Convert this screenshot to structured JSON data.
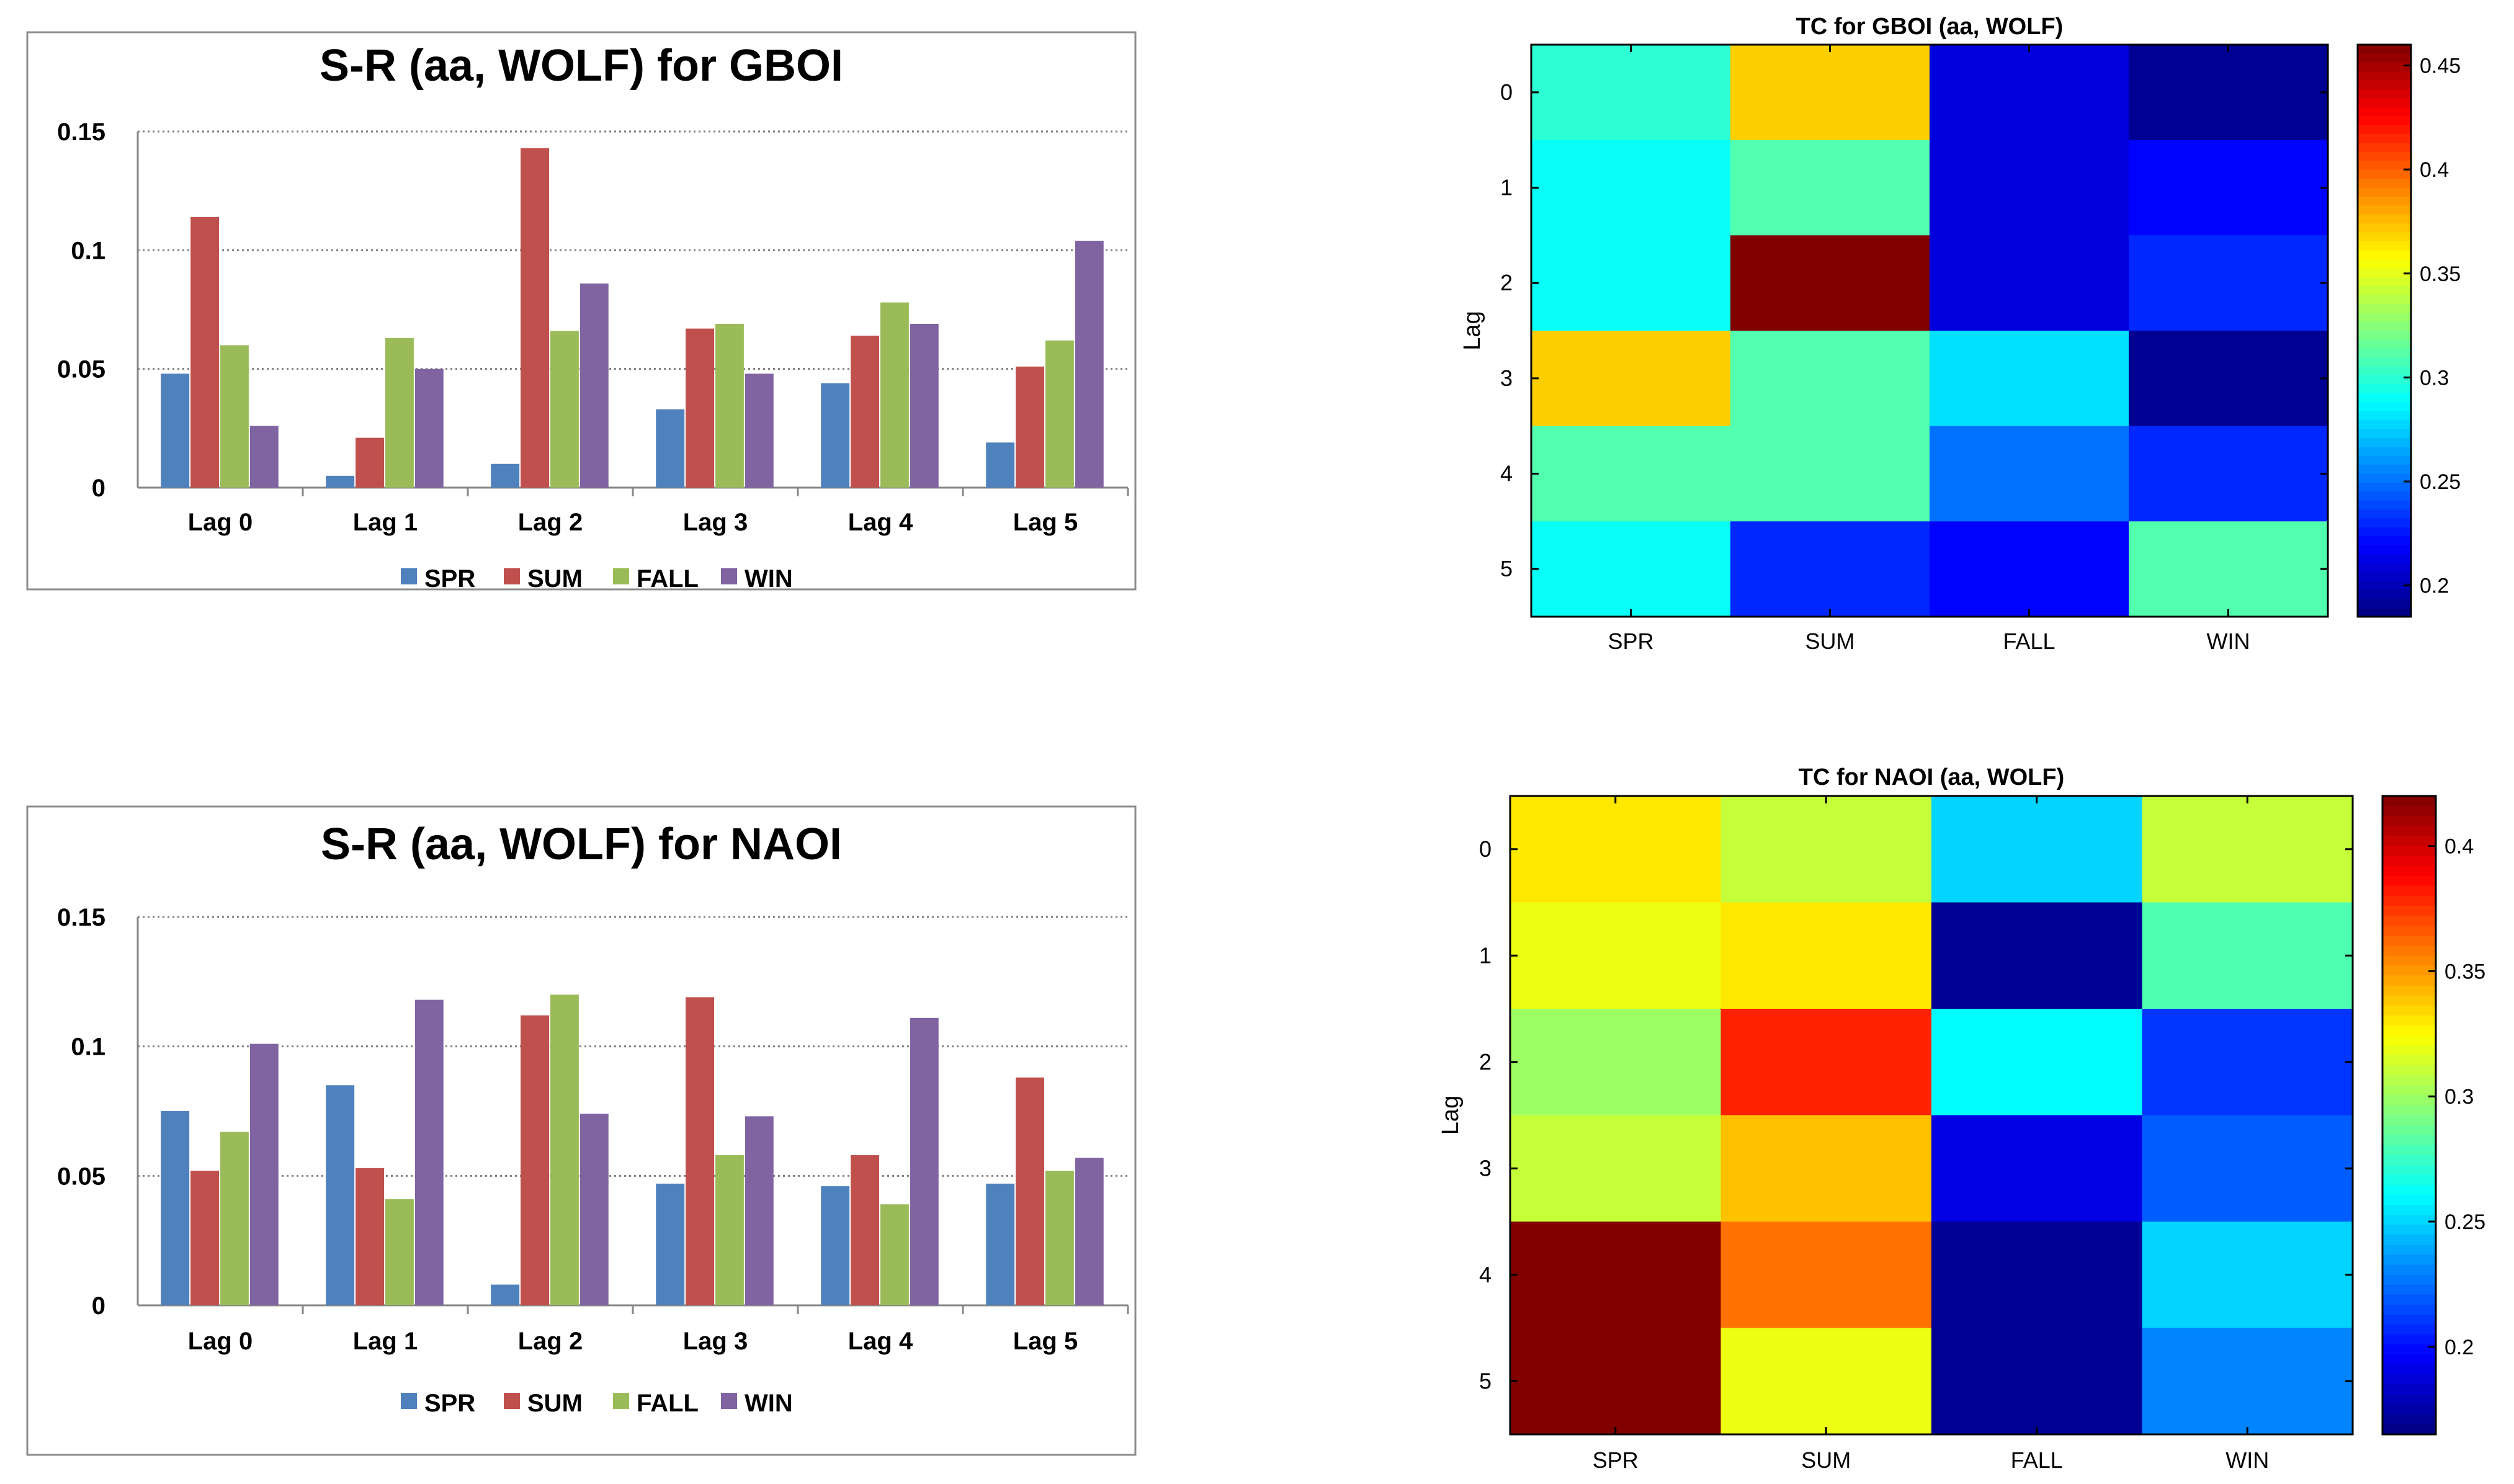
{
  "colors": {
    "SPR": "#4f81bd",
    "SUM": "#c0504d",
    "FALL": "#9bbb59",
    "WIN": "#8064a2"
  },
  "chart_data": [
    {
      "type": "bar",
      "title": "S-R (aa, WOLF) for GBOI",
      "categories": [
        "Lag 0",
        "Lag 1",
        "Lag 2",
        "Lag 3",
        "Lag 4",
        "Lag 5"
      ],
      "ylim": [
        0,
        0.15
      ],
      "yticks": [
        0,
        0.05,
        0.1,
        0.15
      ],
      "ytick_labels": [
        "0",
        "0.05",
        "0.1",
        "0.15"
      ],
      "grid": true,
      "legend": "bottom",
      "series": [
        {
          "name": "SPR",
          "values": [
            0.048,
            0.005,
            0.01,
            0.033,
            0.044,
            0.019
          ]
        },
        {
          "name": "SUM",
          "values": [
            0.114,
            0.021,
            0.143,
            0.067,
            0.064,
            0.051
          ]
        },
        {
          "name": "FALL",
          "values": [
            0.06,
            0.063,
            0.066,
            0.069,
            0.078,
            0.062
          ]
        },
        {
          "name": "WIN",
          "values": [
            0.026,
            0.05,
            0.086,
            0.048,
            0.069,
            0.104
          ]
        }
      ]
    },
    {
      "type": "heatmap",
      "title": "TC for GBOI (aa, WOLF)",
      "xlabel": "",
      "ylabel": "Lag",
      "x_categories": [
        "SPR",
        "SUM",
        "FALL",
        "WIN"
      ],
      "y_categories": [
        "0",
        "1",
        "2",
        "3",
        "4",
        "5"
      ],
      "values": [
        [
          0.3,
          0.37,
          0.21,
          0.19
        ],
        [
          0.29,
          0.31,
          0.21,
          0.22
        ],
        [
          0.29,
          0.46,
          0.21,
          0.23
        ],
        [
          0.37,
          0.31,
          0.28,
          0.19
        ],
        [
          0.31,
          0.31,
          0.25,
          0.23
        ],
        [
          0.29,
          0.23,
          0.22,
          0.31
        ]
      ],
      "colorbar": {
        "range": [
          0.185,
          0.46
        ],
        "ticks": [
          0.2,
          0.25,
          0.3,
          0.35,
          0.4,
          0.45
        ],
        "tick_labels": [
          "0.2",
          "0.25",
          "0.3",
          "0.35",
          "0.4",
          "0.45"
        ]
      }
    },
    {
      "type": "bar",
      "title": "S-R (aa, WOLF) for NAOI",
      "categories": [
        "Lag 0",
        "Lag 1",
        "Lag 2",
        "Lag 3",
        "Lag 4",
        "Lag 5"
      ],
      "ylim": [
        0,
        0.15
      ],
      "yticks": [
        0,
        0.05,
        0.1,
        0.15
      ],
      "ytick_labels": [
        "0",
        "0.05",
        "0.1",
        "0.15"
      ],
      "grid": true,
      "legend": "bottom",
      "series": [
        {
          "name": "SPR",
          "values": [
            0.075,
            0.085,
            0.008,
            0.047,
            0.046,
            0.047
          ]
        },
        {
          "name": "SUM",
          "values": [
            0.052,
            0.053,
            0.112,
            0.119,
            0.058,
            0.088
          ]
        },
        {
          "name": "FALL",
          "values": [
            0.067,
            0.041,
            0.12,
            0.058,
            0.039,
            0.052
          ]
        },
        {
          "name": "WIN",
          "values": [
            0.101,
            0.118,
            0.074,
            0.073,
            0.111,
            0.057
          ]
        }
      ]
    },
    {
      "type": "heatmap",
      "title": "TC for NAOI (aa, WOLF)",
      "xlabel": "",
      "ylabel": "Lag",
      "x_categories": [
        "SPR",
        "SUM",
        "FALL",
        "WIN"
      ],
      "y_categories": [
        "0",
        "1",
        "2",
        "3",
        "4",
        "5"
      ],
      "values": [
        [
          0.33,
          0.31,
          0.25,
          0.31
        ],
        [
          0.32,
          0.33,
          0.17,
          0.28
        ],
        [
          0.3,
          0.38,
          0.26,
          0.21
        ],
        [
          0.31,
          0.34,
          0.19,
          0.22
        ],
        [
          0.42,
          0.36,
          0.17,
          0.25
        ],
        [
          0.42,
          0.32,
          0.17,
          0.23
        ]
      ],
      "colorbar": {
        "range": [
          0.165,
          0.42
        ],
        "ticks": [
          0.2,
          0.25,
          0.3,
          0.35,
          0.4
        ],
        "tick_labels": [
          "0.2",
          "0.25",
          "0.3",
          "0.35",
          "0.4"
        ]
      }
    }
  ]
}
